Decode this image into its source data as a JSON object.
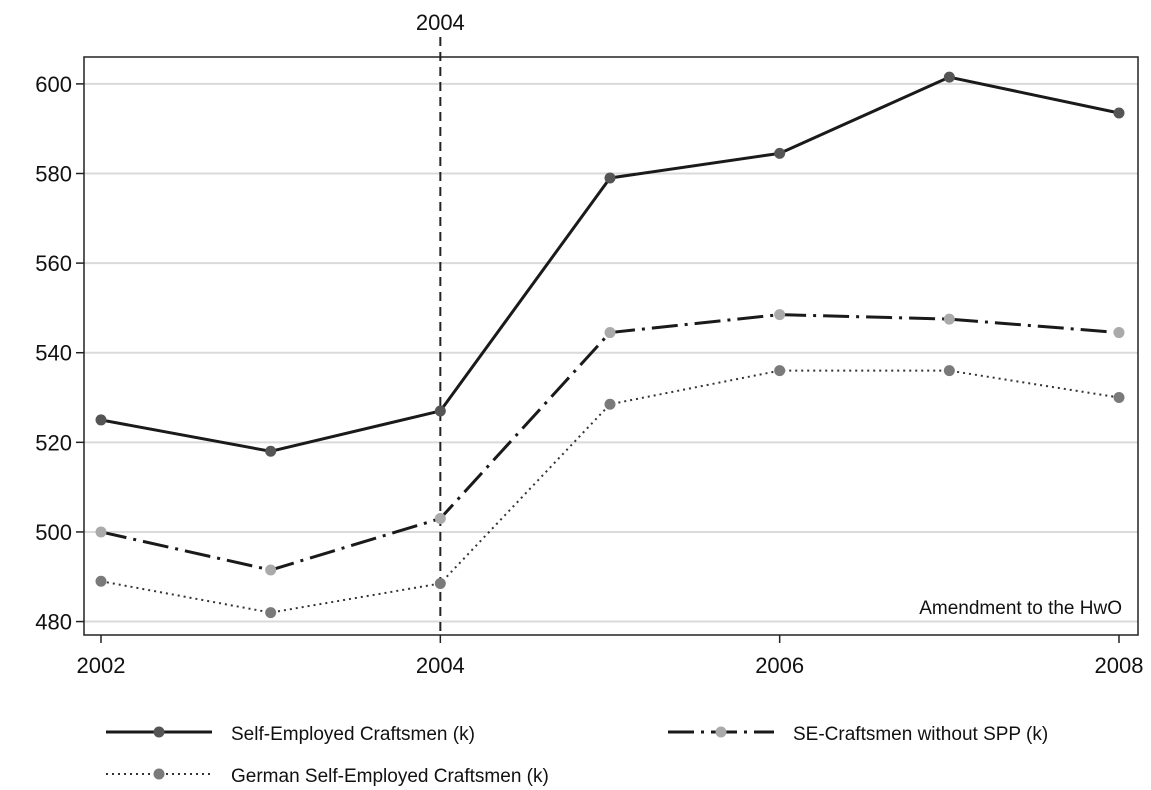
{
  "chart_data": {
    "type": "line",
    "x": [
      2002,
      2003,
      2004,
      2005,
      2006,
      2007,
      2008
    ],
    "xlim": [
      2002,
      2008
    ],
    "ylim": [
      477,
      606
    ],
    "xticks": [
      "2002",
      "2004",
      "2006",
      "2008"
    ],
    "yticks": [
      "480",
      "500",
      "520",
      "540",
      "560",
      "580",
      "600"
    ],
    "grid": true,
    "series": [
      {
        "name": "Self-Employed Craftsmen (k)",
        "values": [
          525,
          518,
          527,
          579,
          584.5,
          601.5,
          593.5
        ],
        "color": "#1a1a1a",
        "marker_color": "#555555",
        "style": "solid"
      },
      {
        "name": "SE-Craftsmen without SPP (k)",
        "values": [
          500,
          491.5,
          503,
          544.5,
          548.5,
          547.5,
          544.5
        ],
        "color": "#1a1a1a",
        "marker_color": "#aaaaaa",
        "style": "longdash-dot"
      },
      {
        "name": "German Self-Employed Craftsmen (k)",
        "values": [
          489,
          482,
          488.5,
          528.5,
          536,
          536,
          530
        ],
        "color": "#333333",
        "marker_color": "#7a7a7a",
        "style": "dotted"
      }
    ],
    "reference_line": {
      "x": 2004,
      "label": "2004",
      "style": "dashed"
    },
    "annotation": "Amendment to the HwO",
    "legend": "bottom"
  }
}
